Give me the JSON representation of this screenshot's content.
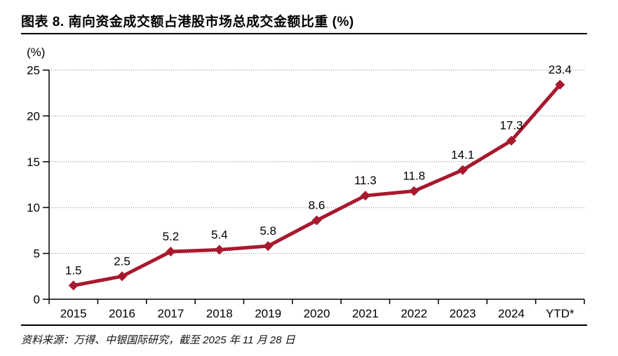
{
  "figure": {
    "title": "图表 8. 南向资金成交额占港股市场总成交金额比重 (%)",
    "source_note": "资料来源：万得、中银国际研究，截至 2025 年 11 月 28 日"
  },
  "chart_data": {
    "type": "line",
    "title": "南向资金成交额占港股市场总成交金额比重 (%)",
    "categories": [
      "2015",
      "2016",
      "2017",
      "2018",
      "2019",
      "2020",
      "2021",
      "2022",
      "2023",
      "2024",
      "YTD*"
    ],
    "values": [
      1.5,
      2.5,
      5.2,
      5.4,
      5.8,
      8.6,
      11.3,
      11.8,
      14.1,
      17.3,
      23.4
    ],
    "data_labels": [
      "1.5",
      "2.5",
      "5.2",
      "5.4",
      "5.8",
      "8.6",
      "11.3",
      "11.8",
      "14.1",
      "17.3",
      "23.4"
    ],
    "xlabel": "",
    "ylabel": "(%)",
    "ylim": [
      0,
      25
    ],
    "yticks": [
      0,
      5,
      10,
      15,
      20,
      25
    ],
    "grid": true,
    "legend": "none",
    "line_color": "#A8192E",
    "marker": "diamond"
  }
}
